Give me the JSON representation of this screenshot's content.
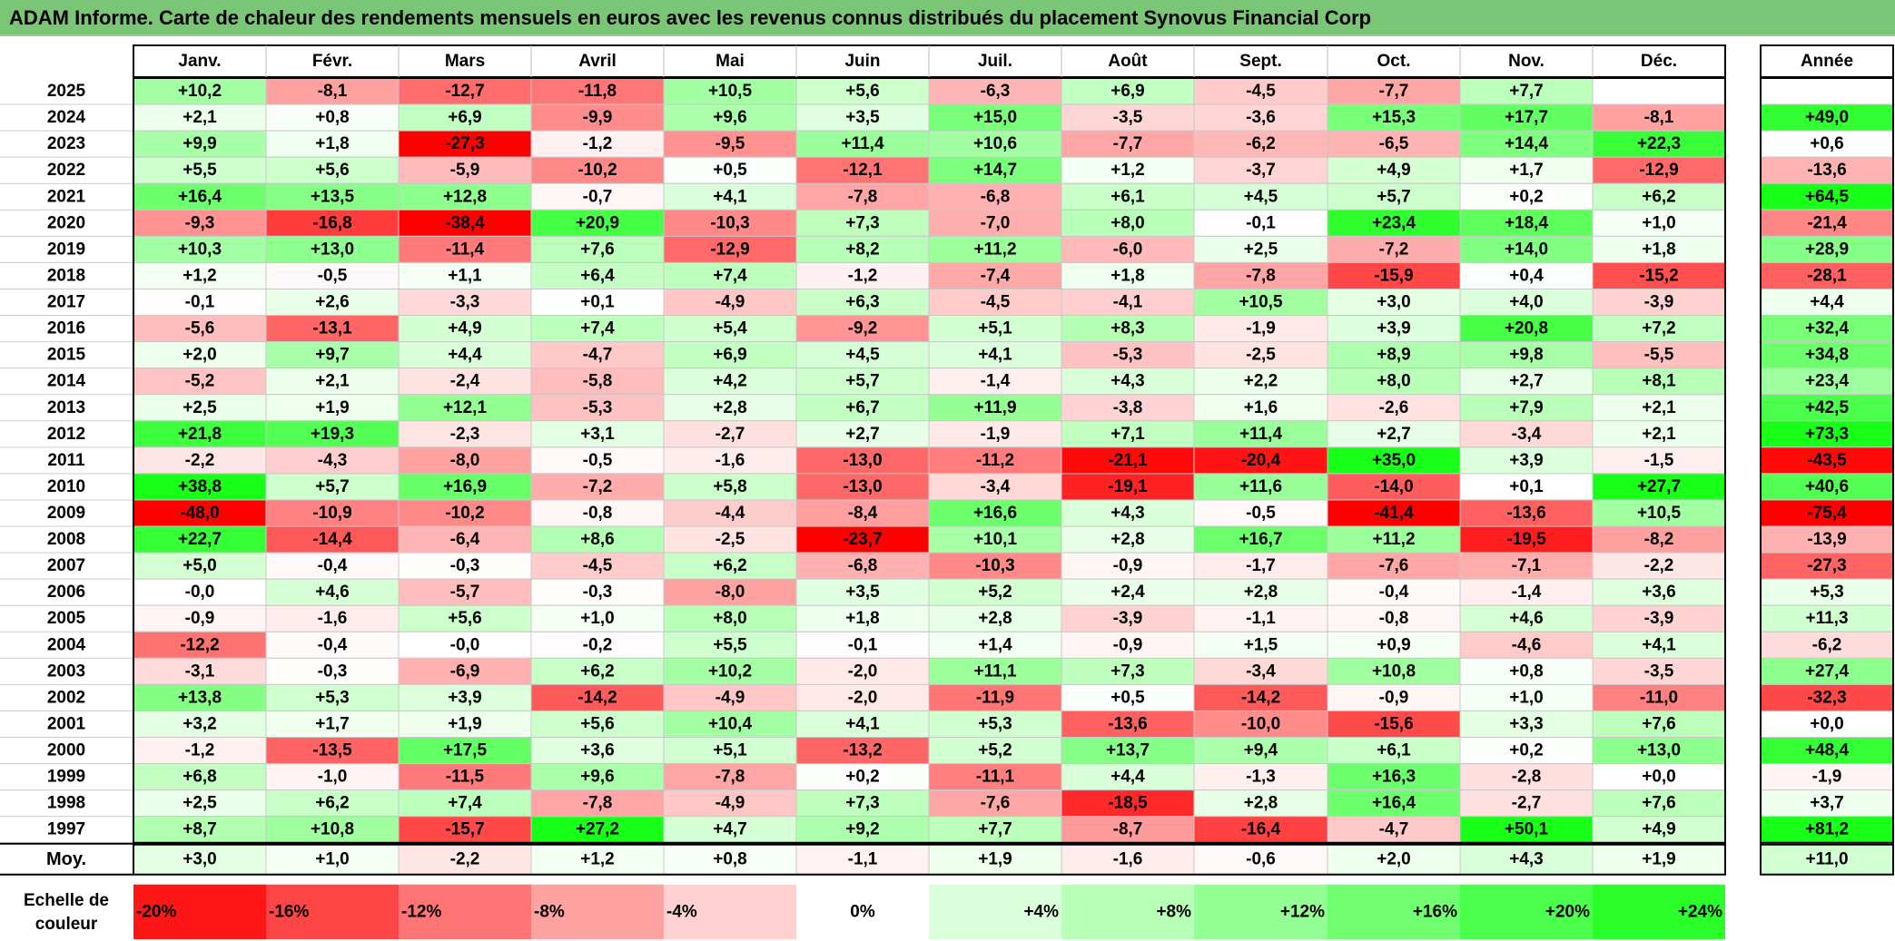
{
  "title": "ADAM Informe. Carte de chaleur des rendements mensuels en euros avec les revenus connus distribués du placement Synovus Financial Corp",
  "chart_data": {
    "type": "heatmap",
    "title": "ADAM Informe. Carte de chaleur des rendements mensuels en euros avec les revenus connus distribués du placement Synovus Financial Corp",
    "columns": [
      "Janv.",
      "Févr.",
      "Mars",
      "Avril",
      "Mai",
      "Juin",
      "Juil.",
      "Août",
      "Sept.",
      "Oct.",
      "Nov.",
      "Déc."
    ],
    "year_header": "Année",
    "rows": [
      {
        "year": "2025",
        "values": [
          "+10,2",
          "-8,1",
          "-12,7",
          "-11,8",
          "+10,5",
          "+5,6",
          "-6,3",
          "+6,9",
          "-4,5",
          "-7,7",
          "+7,7",
          ""
        ],
        "annual": ""
      },
      {
        "year": "2024",
        "values": [
          "+2,1",
          "+0,8",
          "+6,9",
          "-9,9",
          "+9,6",
          "+3,5",
          "+15,0",
          "-3,5",
          "-3,6",
          "+15,3",
          "+17,7",
          "-8,1"
        ],
        "annual": "+49,0"
      },
      {
        "year": "2023",
        "values": [
          "+9,9",
          "+1,8",
          "-27,3",
          "-1,2",
          "-9,5",
          "+11,4",
          "+10,6",
          "-7,7",
          "-6,2",
          "-6,5",
          "+14,4",
          "+22,3"
        ],
        "annual": "+0,6"
      },
      {
        "year": "2022",
        "values": [
          "+5,5",
          "+5,6",
          "-5,9",
          "-10,2",
          "+0,5",
          "-12,1",
          "+14,7",
          "+1,2",
          "-3,7",
          "+4,9",
          "+1,7",
          "-12,9"
        ],
        "annual": "-13,6"
      },
      {
        "year": "2021",
        "values": [
          "+16,4",
          "+13,5",
          "+12,8",
          "-0,7",
          "+4,1",
          "-7,8",
          "-6,8",
          "+6,1",
          "+4,5",
          "+5,7",
          "+0,2",
          "+6,2"
        ],
        "annual": "+64,5"
      },
      {
        "year": "2020",
        "values": [
          "-9,3",
          "-16,8",
          "-38,4",
          "+20,9",
          "-10,3",
          "+7,3",
          "-7,0",
          "+8,0",
          "-0,1",
          "+23,4",
          "+18,4",
          "+1,0"
        ],
        "annual": "-21,4"
      },
      {
        "year": "2019",
        "values": [
          "+10,3",
          "+13,0",
          "-11,4",
          "+7,6",
          "-12,9",
          "+8,2",
          "+11,2",
          "-6,0",
          "+2,5",
          "-7,2",
          "+14,0",
          "+1,8"
        ],
        "annual": "+28,9"
      },
      {
        "year": "2018",
        "values": [
          "+1,2",
          "-0,5",
          "+1,1",
          "+6,4",
          "+7,4",
          "-1,2",
          "-7,4",
          "+1,8",
          "-7,8",
          "-15,9",
          "+0,4",
          "-15,2"
        ],
        "annual": "-28,1"
      },
      {
        "year": "2017",
        "values": [
          "-0,1",
          "+2,6",
          "-3,3",
          "+0,1",
          "-4,9",
          "+6,3",
          "-4,5",
          "-4,1",
          "+10,5",
          "+3,0",
          "+4,0",
          "-3,9"
        ],
        "annual": "+4,4"
      },
      {
        "year": "2016",
        "values": [
          "-5,6",
          "-13,1",
          "+4,9",
          "+7,4",
          "+5,4",
          "-9,2",
          "+5,1",
          "+8,3",
          "-1,9",
          "+3,9",
          "+20,8",
          "+7,2"
        ],
        "annual": "+32,4"
      },
      {
        "year": "2015",
        "values": [
          "+2,0",
          "+9,7",
          "+4,4",
          "-4,7",
          "+6,9",
          "+4,5",
          "+4,1",
          "-5,3",
          "-2,5",
          "+8,9",
          "+9,8",
          "-5,5"
        ],
        "annual": "+34,8"
      },
      {
        "year": "2014",
        "values": [
          "-5,2",
          "+2,1",
          "-2,4",
          "-5,8",
          "+4,2",
          "+5,7",
          "-1,4",
          "+4,3",
          "+2,2",
          "+8,0",
          "+2,7",
          "+8,1"
        ],
        "annual": "+23,4"
      },
      {
        "year": "2013",
        "values": [
          "+2,5",
          "+1,9",
          "+12,1",
          "-5,3",
          "+2,8",
          "+6,7",
          "+11,9",
          "-3,8",
          "+1,6",
          "-2,6",
          "+7,9",
          "+2,1"
        ],
        "annual": "+42,5"
      },
      {
        "year": "2012",
        "values": [
          "+21,8",
          "+19,3",
          "-2,3",
          "+3,1",
          "-2,7",
          "+2,7",
          "-1,9",
          "+7,1",
          "+11,4",
          "+2,7",
          "-3,4",
          "+2,1"
        ],
        "annual": "+73,3"
      },
      {
        "year": "2011",
        "values": [
          "-2,2",
          "-4,3",
          "-8,0",
          "-0,5",
          "-1,6",
          "-13,0",
          "-11,2",
          "-21,1",
          "-20,4",
          "+35,0",
          "+3,9",
          "-1,5"
        ],
        "annual": "-43,5"
      },
      {
        "year": "2010",
        "values": [
          "+38,8",
          "+5,7",
          "+16,9",
          "-7,2",
          "+5,8",
          "-13,0",
          "-3,4",
          "-19,1",
          "+11,6",
          "-14,0",
          "+0,1",
          "+27,7"
        ],
        "annual": "+40,6"
      },
      {
        "year": "2009",
        "values": [
          "-48,0",
          "-10,9",
          "-10,2",
          "-0,8",
          "-4,4",
          "-8,4",
          "+16,6",
          "+4,3",
          "-0,5",
          "-41,4",
          "-13,6",
          "+10,5"
        ],
        "annual": "-75,4"
      },
      {
        "year": "2008",
        "values": [
          "+22,7",
          "-14,4",
          "-6,4",
          "+8,6",
          "-2,5",
          "-23,7",
          "+10,1",
          "+2,8",
          "+16,7",
          "+11,2",
          "-19,5",
          "-8,2"
        ],
        "annual": "-13,9"
      },
      {
        "year": "2007",
        "values": [
          "+5,0",
          "-0,4",
          "-0,3",
          "-4,5",
          "+6,2",
          "-6,8",
          "-10,3",
          "-0,9",
          "-1,7",
          "-7,6",
          "-7,1",
          "-2,2"
        ],
        "annual": "-27,3"
      },
      {
        "year": "2006",
        "values": [
          "-0,0",
          "+4,6",
          "-5,7",
          "-0,3",
          "-8,0",
          "+3,5",
          "+5,2",
          "+2,4",
          "+2,8",
          "-0,4",
          "-1,4",
          "+3,6"
        ],
        "annual": "+5,3"
      },
      {
        "year": "2005",
        "values": [
          "-0,9",
          "-1,6",
          "+5,6",
          "+1,0",
          "+8,0",
          "+1,8",
          "+2,8",
          "-3,9",
          "-1,1",
          "-0,8",
          "+4,6",
          "-3,9"
        ],
        "annual": "+11,3"
      },
      {
        "year": "2004",
        "values": [
          "-12,2",
          "-0,4",
          "-0,0",
          "-0,2",
          "+5,5",
          "-0,1",
          "+1,4",
          "-0,9",
          "+1,5",
          "+0,9",
          "-4,6",
          "+4,1"
        ],
        "annual": "-6,2"
      },
      {
        "year": "2003",
        "values": [
          "-3,1",
          "-0,3",
          "-6,9",
          "+6,2",
          "+10,2",
          "-2,0",
          "+11,1",
          "+7,3",
          "-3,4",
          "+10,8",
          "+0,8",
          "-3,5"
        ],
        "annual": "+27,4"
      },
      {
        "year": "2002",
        "values": [
          "+13,8",
          "+5,3",
          "+3,9",
          "-14,2",
          "-4,9",
          "-2,0",
          "-11,9",
          "+0,5",
          "-14,2",
          "-0,9",
          "+1,0",
          "-11,0"
        ],
        "annual": "-32,3"
      },
      {
        "year": "2001",
        "values": [
          "+3,2",
          "+1,7",
          "+1,9",
          "+5,6",
          "+10,4",
          "+4,1",
          "+5,3",
          "-13,6",
          "-10,0",
          "-15,6",
          "+3,3",
          "+7,6"
        ],
        "annual": "+0,0"
      },
      {
        "year": "2000",
        "values": [
          "-1,2",
          "-13,5",
          "+17,5",
          "+3,6",
          "+5,1",
          "-13,2",
          "+5,2",
          "+13,7",
          "+9,4",
          "+6,1",
          "+0,2",
          "+13,0"
        ],
        "annual": "+48,4"
      },
      {
        "year": "1999",
        "values": [
          "+6,8",
          "-1,0",
          "-11,5",
          "+9,6",
          "-7,8",
          "+0,2",
          "-11,1",
          "+4,4",
          "-1,3",
          "+16,3",
          "-2,8",
          "+0,0"
        ],
        "annual": "-1,9"
      },
      {
        "year": "1998",
        "values": [
          "+2,5",
          "+6,2",
          "+7,4",
          "-7,8",
          "-4,9",
          "+7,3",
          "-7,6",
          "-18,5",
          "+2,8",
          "+16,4",
          "-2,7",
          "+7,6"
        ],
        "annual": "+3,7"
      },
      {
        "year": "1997",
        "values": [
          "+8,7",
          "+10,8",
          "-15,7",
          "+27,2",
          "+4,7",
          "+9,2",
          "+7,7",
          "-8,7",
          "-16,4",
          "-4,7",
          "+50,1",
          "+4,9"
        ],
        "annual": "+81,2"
      }
    ],
    "average": {
      "label": "Moy.",
      "values": [
        "+3,0",
        "+1,0",
        "-2,2",
        "+1,2",
        "+0,8",
        "-1,1",
        "+1,9",
        "-1,6",
        "-0,6",
        "+2,0",
        "+4,3",
        "+1,9"
      ],
      "annual": "+11,0"
    },
    "scale": {
      "label_line1": "Echelle de",
      "label_line2": "couleur",
      "stops": [
        "-20%",
        "-16%",
        "-12%",
        "-8%",
        "-4%",
        "0%",
        "+4%",
        "+8%",
        "+12%",
        "+16%",
        "+20%",
        "+24%"
      ]
    },
    "colors": {
      "neg_max": "#ff0000",
      "pos_max": "#18ff18",
      "neutral": "#ffffff",
      "title_bg": "#7bc676"
    }
  }
}
